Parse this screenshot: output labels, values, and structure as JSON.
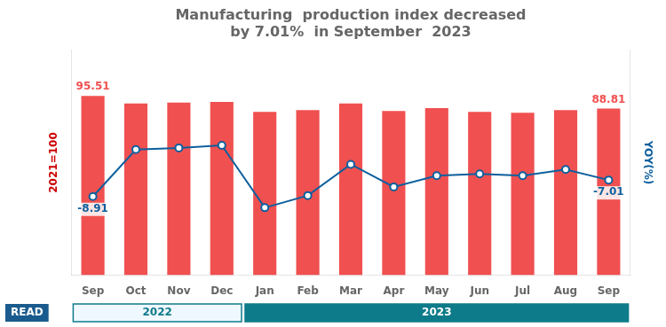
{
  "chart_data": {
    "type": "bar",
    "title": [
      "Manufacturing  production index decreased",
      "by 7.01%  in September  2023"
    ],
    "categories": [
      "Sep",
      "Oct",
      "Nov",
      "Dec",
      "Jan",
      "Feb",
      "Mar",
      "Apr",
      "May",
      "Jun",
      "Jul",
      "Aug",
      "Sep"
    ],
    "ylabel": "2021=100",
    "y2label": "YOY(%)",
    "ylim": [
      0,
      120
    ],
    "y2lim": [
      -18,
      8
    ],
    "tick_labels": "x",
    "grid": false,
    "series": [
      {
        "type": "bar",
        "color": "#f05050",
        "values": [
          95.51,
          91.5,
          92.0,
          92.3,
          87.0,
          88.0,
          91.5,
          87.5,
          89.0,
          87.0,
          86.5,
          88.0,
          88.81
        ],
        "value_labels": [
          "95.51",
          null,
          null,
          null,
          null,
          null,
          null,
          null,
          null,
          null,
          null,
          null,
          "88.81"
        ]
      },
      {
        "type": "line",
        "axis": "y2",
        "color": "#0d5f9e",
        "marker": "circle",
        "values": [
          -8.91,
          -3.5,
          -3.3,
          -3.0,
          -10.2,
          -8.8,
          -5.2,
          -7.8,
          -6.5,
          -6.3,
          -6.5,
          -5.8,
          -7.01
        ],
        "value_labels": [
          "-8.91",
          null,
          null,
          null,
          null,
          null,
          null,
          null,
          null,
          null,
          null,
          null,
          "-7.01"
        ]
      }
    ],
    "annotations": [
      {
        "text": "2022",
        "span": 4
      },
      {
        "text": "2023",
        "span": 9
      },
      {
        "text": "READ"
      }
    ]
  }
}
